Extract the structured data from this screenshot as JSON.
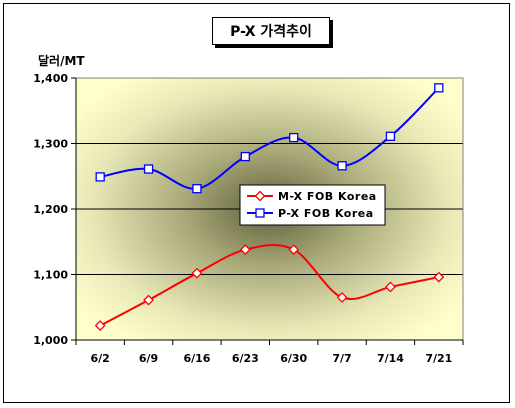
{
  "chart_data": {
    "type": "line",
    "title": "P-X 가격추이",
    "ylabel": "달러/MT",
    "xlabel": "",
    "categories": [
      "6/2",
      "6/9",
      "6/16",
      "6/23",
      "6/30",
      "7/7",
      "7/14",
      "7/21"
    ],
    "ylim": [
      1000,
      1400
    ],
    "yticks": [
      1000,
      1100,
      1200,
      1300,
      1400
    ],
    "yticks_labels": [
      "1,000",
      "1,100",
      "1,200",
      "1,300",
      "1,400"
    ],
    "grid": true,
    "legend": "center",
    "series": [
      {
        "name": "M-X FOB Korea",
        "color": "#ff0000",
        "marker": "diamond",
        "values": [
          1022,
          1061,
          1102,
          1138,
          1138,
          1065,
          1081,
          1096
        ]
      },
      {
        "name": "P-X FOB Korea",
        "color": "#0000ff",
        "marker": "square",
        "values": [
          1249,
          1261,
          1231,
          1280,
          1309,
          1266,
          1311,
          1385
        ]
      }
    ]
  }
}
